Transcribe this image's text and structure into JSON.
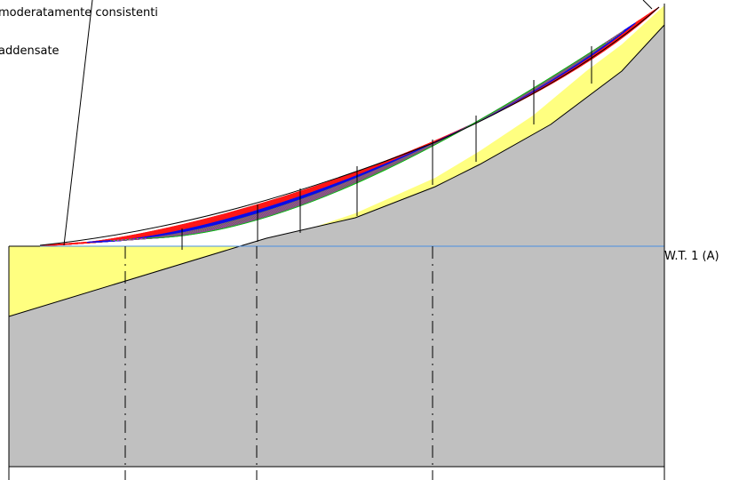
{
  "labels": {
    "layer_1": "moderatamente consistenti",
    "layer_2": "addensate",
    "water_table": "W.T. 1 (A)"
  },
  "colors": {
    "bedrock": "#c0c0c0",
    "soil_layer": "#ffff80",
    "water_table": "#4a90e2",
    "outline": "#000000",
    "slip_surfaces": [
      "#ff0000",
      "#ff3030",
      "#0000ff",
      "#1a1ad0",
      "#8a2be2",
      "#00c800",
      "#808000",
      "#ff00ff"
    ]
  }
}
